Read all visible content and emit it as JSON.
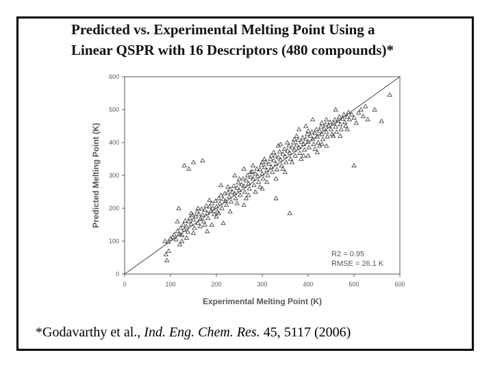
{
  "slide": {
    "title_line_1": "Predicted vs. Experimental Melting Point Using a",
    "title_line_2": "Linear QSPR with 16 Descriptors (480 compounds)*",
    "citation": {
      "authors": "*Godavarthy et al.,",
      "journal": "Ind. Eng. Chem. Res.",
      "rest": "45, 5117 (2006)"
    }
  },
  "chart_data": {
    "type": "scatter",
    "title": "",
    "xlabel": "Experimental Melting Point (K)",
    "ylabel": "Predicted Melting Point (K)",
    "xlim": [
      0,
      600
    ],
    "ylim": [
      0,
      600
    ],
    "xticks": [
      0,
      100,
      200,
      300,
      400,
      500,
      600
    ],
    "yticks": [
      0,
      100,
      200,
      300,
      400,
      500,
      600
    ],
    "grid": false,
    "marker": "open-triangle",
    "reference_line": {
      "from": [
        0,
        0
      ],
      "to": [
        600,
        600
      ]
    },
    "annotations": [
      "R2 = 0.95",
      "RMSE = 26.1 K"
    ],
    "annotation_placement": "bottom-right",
    "colors": {
      "points": "#333333",
      "axes": "#555555"
    },
    "points": [
      [
        88,
        100
      ],
      [
        90,
        60
      ],
      [
        92,
        42
      ],
      [
        95,
        98
      ],
      [
        96,
        70
      ],
      [
        100,
        108
      ],
      [
        105,
        112
      ],
      [
        108,
        120
      ],
      [
        112,
        105
      ],
      [
        115,
        130
      ],
      [
        118,
        200
      ],
      [
        120,
        122
      ],
      [
        122,
        140
      ],
      [
        125,
        118
      ],
      [
        128,
        150
      ],
      [
        130,
        135
      ],
      [
        132,
        162
      ],
      [
        135,
        145
      ],
      [
        138,
        128
      ],
      [
        140,
        160
      ],
      [
        142,
        170
      ],
      [
        145,
        152
      ],
      [
        148,
        180
      ],
      [
        150,
        165
      ],
      [
        152,
        140
      ],
      [
        155,
        175
      ],
      [
        158,
        190
      ],
      [
        160,
        155
      ],
      [
        162,
        182
      ],
      [
        165,
        168
      ],
      [
        168,
        198
      ],
      [
        170,
        180
      ],
      [
        172,
        160
      ],
      [
        175,
        195
      ],
      [
        178,
        208
      ],
      [
        180,
        185
      ],
      [
        182,
        170
      ],
      [
        185,
        205
      ],
      [
        188,
        192
      ],
      [
        190,
        215
      ],
      [
        192,
        200
      ],
      [
        195,
        182
      ],
      [
        198,
        222
      ],
      [
        200,
        205
      ],
      [
        202,
        190
      ],
      [
        205,
        230
      ],
      [
        208,
        215
      ],
      [
        210,
        240
      ],
      [
        212,
        200
      ],
      [
        215,
        228
      ],
      [
        218,
        245
      ],
      [
        220,
        222
      ],
      [
        222,
        210
      ],
      [
        225,
        248
      ],
      [
        228,
        235
      ],
      [
        230,
        258
      ],
      [
        232,
        220
      ],
      [
        235,
        250
      ],
      [
        238,
        268
      ],
      [
        240,
        245
      ],
      [
        242,
        230
      ],
      [
        245,
        262
      ],
      [
        248,
        278
      ],
      [
        250,
        255
      ],
      [
        252,
        240
      ],
      [
        255,
        272
      ],
      [
        258,
        290
      ],
      [
        260,
        268
      ],
      [
        262,
        250
      ],
      [
        265,
        285
      ],
      [
        268,
        300
      ],
      [
        270,
        275
      ],
      [
        272,
        260
      ],
      [
        275,
        295
      ],
      [
        278,
        312
      ],
      [
        280,
        290
      ],
      [
        282,
        270
      ],
      [
        285,
        305
      ],
      [
        288,
        320
      ],
      [
        290,
        298
      ],
      [
        292,
        280
      ],
      [
        295,
        318
      ],
      [
        298,
        332
      ],
      [
        300,
        305
      ],
      [
        302,
        290
      ],
      [
        305,
        325
      ],
      [
        308,
        340
      ],
      [
        310,
        315
      ],
      [
        312,
        300
      ],
      [
        315,
        335
      ],
      [
        318,
        350
      ],
      [
        320,
        325
      ],
      [
        322,
        310
      ],
      [
        325,
        345
      ],
      [
        328,
        360
      ],
      [
        330,
        335
      ],
      [
        332,
        318
      ],
      [
        335,
        355
      ],
      [
        338,
        372
      ],
      [
        340,
        348
      ],
      [
        342,
        330
      ],
      [
        345,
        365
      ],
      [
        348,
        380
      ],
      [
        350,
        358
      ],
      [
        352,
        340
      ],
      [
        355,
        375
      ],
      [
        358,
        390
      ],
      [
        360,
        368
      ],
      [
        362,
        350
      ],
      [
        365,
        385
      ],
      [
        368,
        400
      ],
      [
        370,
        378
      ],
      [
        372,
        360
      ],
      [
        375,
        392
      ],
      [
        378,
        408
      ],
      [
        380,
        385
      ],
      [
        382,
        368
      ],
      [
        385,
        402
      ],
      [
        388,
        415
      ],
      [
        390,
        395
      ],
      [
        392,
        378
      ],
      [
        395,
        410
      ],
      [
        398,
        425
      ],
      [
        400,
        402
      ],
      [
        402,
        385
      ],
      [
        405,
        420
      ],
      [
        408,
        432
      ],
      [
        410,
        410
      ],
      [
        412,
        395
      ],
      [
        415,
        428
      ],
      [
        418,
        440
      ],
      [
        420,
        418
      ],
      [
        422,
        400
      ],
      [
        425,
        435
      ],
      [
        428,
        448
      ],
      [
        430,
        425
      ],
      [
        432,
        410
      ],
      [
        435,
        442
      ],
      [
        438,
        455
      ],
      [
        440,
        432
      ],
      [
        442,
        418
      ],
      [
        445,
        450
      ],
      [
        448,
        462
      ],
      [
        450,
        440
      ],
      [
        452,
        425
      ],
      [
        455,
        458
      ],
      [
        458,
        470
      ],
      [
        460,
        448
      ],
      [
        462,
        432
      ],
      [
        465,
        465
      ],
      [
        468,
        478
      ],
      [
        470,
        455
      ],
      [
        472,
        440
      ],
      [
        475,
        472
      ],
      [
        478,
        485
      ],
      [
        480,
        462
      ],
      [
        482,
        450
      ],
      [
        485,
        478
      ],
      [
        488,
        492
      ],
      [
        490,
        470
      ],
      [
        495,
        485
      ],
      [
        500,
        475
      ],
      [
        505,
        460
      ],
      [
        510,
        490
      ],
      [
        515,
        500
      ],
      [
        520,
        480
      ],
      [
        525,
        510
      ],
      [
        530,
        470
      ],
      [
        545,
        500
      ],
      [
        560,
        465
      ],
      [
        578,
        545
      ],
      [
        500,
        330
      ],
      [
        130,
        330
      ],
      [
        150,
        340
      ],
      [
        170,
        345
      ],
      [
        140,
        320
      ],
      [
        360,
        185
      ],
      [
        215,
        155
      ],
      [
        270,
        240
      ],
      [
        180,
        130
      ],
      [
        260,
        320
      ],
      [
        300,
        260
      ],
      [
        330,
        290
      ],
      [
        440,
        390
      ],
      [
        455,
        420
      ],
      [
        330,
        230
      ],
      [
        210,
        270
      ],
      [
        240,
        300
      ],
      [
        380,
        440
      ],
      [
        400,
        360
      ],
      [
        420,
        370
      ],
      [
        350,
        310
      ],
      [
        230,
        190
      ],
      [
        190,
        150
      ],
      [
        160,
        200
      ],
      [
        120,
        90
      ],
      [
        300,
        340
      ],
      [
        320,
        360
      ],
      [
        260,
        210
      ],
      [
        280,
        330
      ],
      [
        335,
        390
      ],
      [
        365,
        340
      ],
      [
        395,
        450
      ],
      [
        410,
        470
      ],
      [
        470,
        420
      ],
      [
        485,
        440
      ],
      [
        200,
        175
      ],
      [
        175,
        150
      ],
      [
        150,
        125
      ],
      [
        125,
        100
      ],
      [
        250,
        290
      ],
      [
        265,
        230
      ],
      [
        285,
        250
      ],
      [
        305,
        350
      ],
      [
        345,
        320
      ],
      [
        375,
        420
      ],
      [
        390,
        360
      ],
      [
        425,
        390
      ],
      [
        440,
        470
      ],
      [
        460,
        500
      ],
      [
        430,
        460
      ],
      [
        415,
        380
      ],
      [
        385,
        350
      ],
      [
        355,
        400
      ],
      [
        325,
        370
      ],
      [
        295,
        265
      ],
      [
        275,
        310
      ],
      [
        245,
        215
      ],
      [
        225,
        265
      ],
      [
        205,
        185
      ],
      [
        185,
        225
      ],
      [
        165,
        145
      ],
      [
        145,
        185
      ],
      [
        135,
        110
      ],
      [
        115,
        160
      ],
      [
        310,
        280
      ],
      [
        340,
        395
      ],
      [
        370,
        410
      ],
      [
        400,
        435
      ],
      [
        430,
        395
      ]
    ]
  }
}
